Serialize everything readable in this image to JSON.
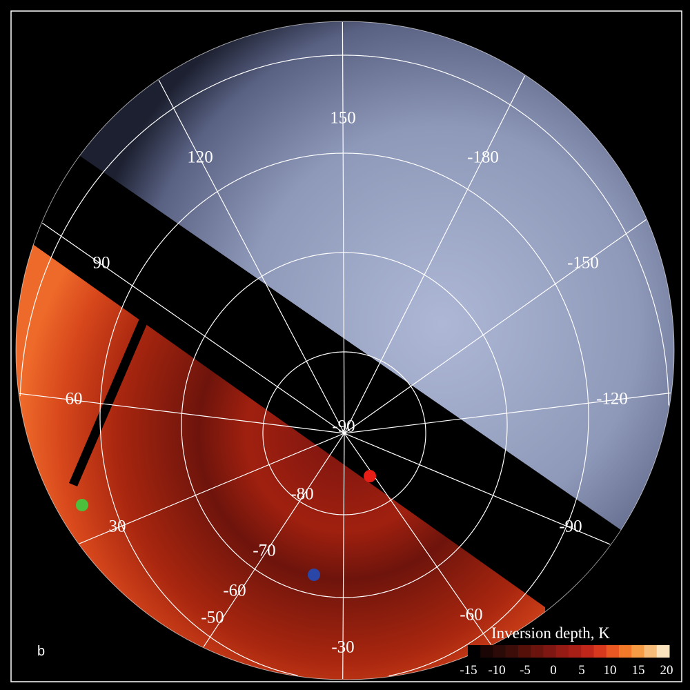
{
  "panel_label": "b",
  "grid_labels": {
    "longitude": [
      "150",
      "120",
      "-180",
      "90",
      "-150",
      "60",
      "-120",
      "30",
      "-90",
      "-60",
      "-30"
    ],
    "latitude": [
      "-90",
      "-80",
      "-70",
      "-60",
      "-50"
    ]
  },
  "colorbar": {
    "title": "Inversion depth, K",
    "ticks": [
      "-15",
      "-10",
      "-5",
      "0",
      "5",
      "10",
      "15",
      "20"
    ],
    "colors": [
      "#000000",
      "#1a0604",
      "#2c0a07",
      "#3d0e09",
      "#551009",
      "#6a140d",
      "#7e1712",
      "#951b14",
      "#a81f17",
      "#c0261a",
      "#d8391e",
      "#ea5722",
      "#f2782a",
      "#f59a45",
      "#f7bd78",
      "#fae3bd"
    ]
  },
  "markers": [
    {
      "name": "green",
      "color": "#4cc03c"
    },
    {
      "name": "red",
      "color": "#e81e16"
    },
    {
      "name": "blue",
      "color": "#2a47a8"
    }
  ]
}
